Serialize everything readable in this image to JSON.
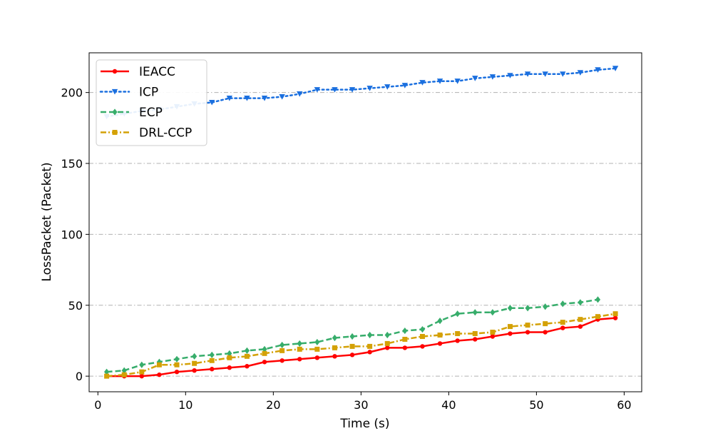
{
  "chart_data": {
    "type": "line",
    "xlabel": "Time (s)",
    "ylabel": "LossPacket (Packet)",
    "xlim": [
      -1,
      62
    ],
    "ylim": [
      -11,
      228
    ],
    "xticks": [
      0,
      10,
      20,
      30,
      40,
      50,
      60
    ],
    "yticks": [
      0,
      50,
      100,
      150,
      200
    ],
    "grid": "horizontal dash-dot",
    "legend_position": "top-left",
    "x": [
      1,
      3,
      5,
      7,
      9,
      11,
      13,
      15,
      17,
      19,
      21,
      23,
      25,
      27,
      29,
      31,
      33,
      35,
      37,
      39,
      41,
      43,
      45,
      47,
      49,
      51,
      53,
      55,
      57,
      59
    ],
    "series": [
      {
        "name": "IEACC",
        "color": "#ff0000",
        "line_style": "solid",
        "marker": "circle",
        "values": [
          0,
          0,
          0,
          1,
          3,
          4,
          5,
          6,
          7,
          10,
          11,
          12,
          13,
          14,
          15,
          17,
          20,
          20,
          21,
          23,
          25,
          26,
          28,
          30,
          31,
          31,
          34,
          35,
          40,
          41
        ]
      },
      {
        "name": "ICP",
        "color": "#1a6fdf",
        "line_style": "dotted",
        "marker": "triangle-down",
        "values": [
          183,
          185,
          187,
          188,
          190,
          192,
          193,
          196,
          196,
          196,
          197,
          199,
          202,
          202,
          202,
          203,
          204,
          205,
          207,
          208,
          208,
          210,
          211,
          212,
          213,
          213,
          213,
          214,
          216,
          217
        ]
      },
      {
        "name": "ECP",
        "color": "#37ad6b",
        "line_style": "dashed",
        "marker": "diamond",
        "values": [
          3,
          4,
          8,
          10,
          12,
          14,
          15,
          16,
          18,
          19,
          22,
          23,
          24,
          27,
          28,
          29,
          29,
          32,
          33,
          39,
          44,
          45,
          45,
          48,
          48,
          49,
          51,
          52,
          54,
          null
        ]
      },
      {
        "name": "DRL-CCP",
        "color": "#d4a106",
        "line_style": "dashdot",
        "marker": "square",
        "values": [
          0,
          1,
          3,
          8,
          8,
          9,
          11,
          13,
          14,
          16,
          18,
          19,
          19,
          20,
          21,
          21,
          23,
          26,
          28,
          29,
          30,
          30,
          31,
          35,
          36,
          37,
          38,
          40,
          42,
          44
        ]
      }
    ]
  }
}
